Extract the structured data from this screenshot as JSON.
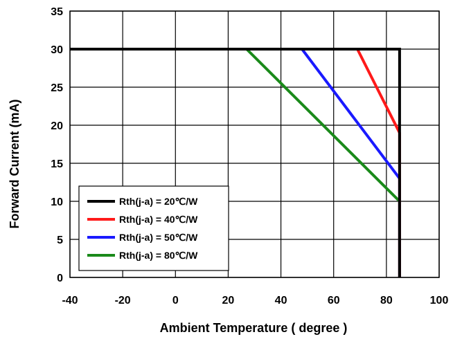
{
  "chart_data": {
    "type": "line",
    "title": "",
    "xlabel": "Ambient Temperature ( degree )",
    "ylabel": "Forward Current (mA)",
    "xlim": [
      -40,
      100
    ],
    "ylim": [
      0,
      35
    ],
    "x_ticks": [
      "-40",
      "-20",
      "0",
      "20",
      "40",
      "60",
      "80",
      "100"
    ],
    "y_ticks": [
      "0",
      "5",
      "10",
      "15",
      "20",
      "25",
      "30",
      "35"
    ],
    "grid": true,
    "legend_position": "bottom-left",
    "series": [
      {
        "name": "Rth(j-a) = 20℃/W",
        "color": "#000000",
        "points": [
          [
            -40,
            30
          ],
          [
            85,
            30
          ],
          [
            85,
            0
          ]
        ]
      },
      {
        "name": "Rth(j-a) = 40℃/W",
        "color": "#ff1a1a",
        "points": [
          [
            -40,
            30
          ],
          [
            69,
            30
          ],
          [
            85,
            19
          ],
          [
            85,
            0
          ]
        ]
      },
      {
        "name": "Rth(j-a) = 50℃/W",
        "color": "#1a1aff",
        "points": [
          [
            -40,
            30
          ],
          [
            48,
            30
          ],
          [
            85,
            13
          ],
          [
            85,
            0
          ]
        ]
      },
      {
        "name": "Rth(j-a) = 80℃/W",
        "color": "#1a8a1a",
        "points": [
          [
            -40,
            30
          ],
          [
            27,
            30
          ],
          [
            85,
            10
          ],
          [
            85,
            0
          ]
        ]
      }
    ]
  }
}
